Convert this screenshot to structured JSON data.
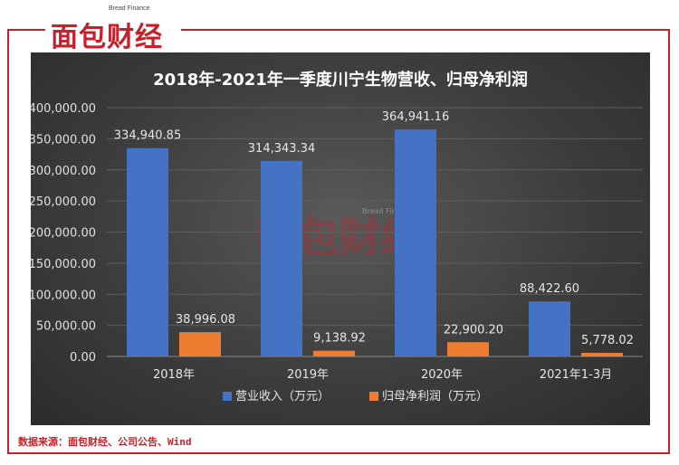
{
  "logo": {
    "text": "面包财经",
    "sub": "Bread Finance"
  },
  "source": "数据来源：面包财经、公司公告、Wind",
  "chart_data": {
    "type": "bar",
    "title": "2018年-2021年一季度川宁生物营收、归母净利润",
    "categories": [
      "2018年",
      "2019年",
      "2020年",
      "2021年1-3月"
    ],
    "ylim": [
      0,
      400000
    ],
    "yticks": [
      "0.00",
      "50,000.00",
      "100,000.00",
      "150,000.00",
      "200,000.00",
      "250,000.00",
      "300,000.00",
      "350,000.00",
      "400,000.00"
    ],
    "grid": true,
    "legend_position": "bottom",
    "series": [
      {
        "name": "营业收入（万元）",
        "color": "#4472c4",
        "values": [
          334940.85,
          314343.34,
          364941.16,
          88422.6
        ],
        "labels": [
          "334,940.85",
          "314,343.34",
          "364,941.16",
          "88,422.60"
        ]
      },
      {
        "name": "归母净利润（万元）",
        "color": "#ed7d31",
        "values": [
          38996.08,
          9138.92,
          22900.2,
          5778.02
        ],
        "labels": [
          "38,996.08",
          "9,138.92",
          "22,900.20",
          "5,778.02"
        ]
      }
    ]
  }
}
